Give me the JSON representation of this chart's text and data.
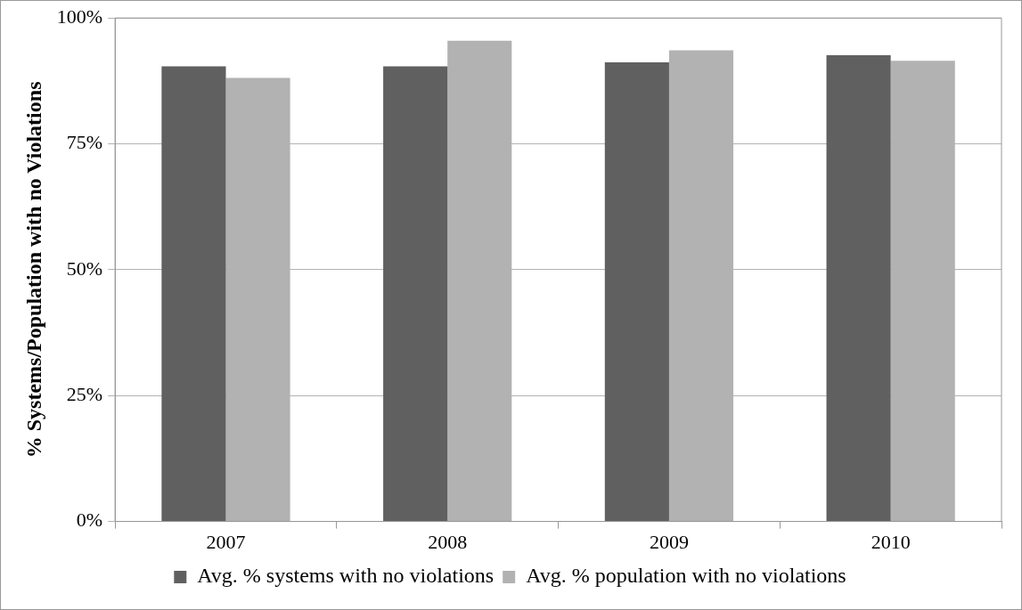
{
  "chart_data": {
    "type": "bar",
    "ylabel": "% Systems/Population with no Violations",
    "categories": [
      "2007",
      "2008",
      "2009",
      "2010"
    ],
    "series": [
      {
        "name": "Avg. % systems with no violations",
        "color": "#606060",
        "values": [
          90.4,
          90.4,
          91.2,
          92.6
        ]
      },
      {
        "name": "Avg. % population with no violations",
        "color": "#b2b2b2",
        "values": [
          88.1,
          95.5,
          93.6,
          91.5
        ]
      }
    ],
    "ylim": [
      0,
      100
    ],
    "yticks": [
      {
        "value": 0,
        "label": "0%"
      },
      {
        "value": 25,
        "label": "25%"
      },
      {
        "value": 50,
        "label": "50%"
      },
      {
        "value": 75,
        "label": "75%"
      },
      {
        "value": 100,
        "label": "100%"
      }
    ],
    "grid": "y",
    "legend": "bottom"
  }
}
